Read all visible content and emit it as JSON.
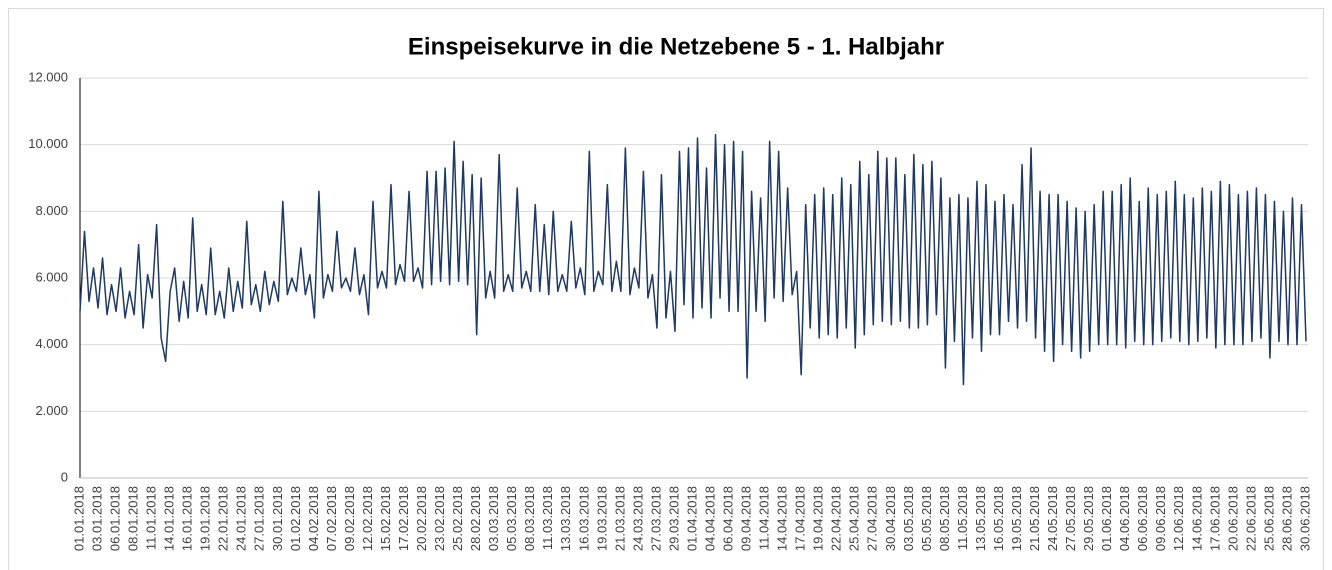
{
  "chart_data": {
    "type": "line",
    "title": "Einspeisekurve in die Netzebene 5 - 1. Halbjahr",
    "color": "#1f3864",
    "grid": true,
    "ylim": [
      0,
      12000
    ],
    "yticks": [
      0,
      {
        "value": 2000,
        "label": "2.000"
      },
      {
        "value": 4000,
        "label": "4.000"
      },
      {
        "value": 6000,
        "label": "6.000"
      },
      {
        "value": 8000,
        "label": "8.000"
      },
      {
        "value": 10000,
        "label": "10.000"
      },
      {
        "value": 12000,
        "label": "12.000"
      }
    ],
    "categories": [
      "01.01.2018",
      null,
      null,
      null,
      "03.01.2018",
      null,
      null,
      null,
      "06.01.2018",
      null,
      null,
      null,
      "08.01.2018",
      null,
      null,
      null,
      "11.01.2018",
      null,
      null,
      null,
      "14.01.2018",
      null,
      null,
      null,
      "16.01.2018",
      null,
      null,
      null,
      "19.01.2018",
      null,
      null,
      null,
      "22.01.2018",
      null,
      null,
      null,
      "24.01.2018",
      null,
      null,
      null,
      "27.01.2018",
      null,
      null,
      null,
      "30.01.2018",
      null,
      null,
      null,
      "01.02.2018",
      null,
      null,
      null,
      "04.02.2018",
      null,
      null,
      null,
      "07.02.2018",
      null,
      null,
      null,
      "09.02.2018",
      null,
      null,
      null,
      "12.02.2018",
      null,
      null,
      null,
      "15.02.2018",
      null,
      null,
      null,
      "17.02.2018",
      null,
      null,
      null,
      "20.02.2018",
      null,
      null,
      null,
      "23.02.2018",
      null,
      null,
      null,
      "25.02.2018",
      null,
      null,
      null,
      "28.02.2018",
      null,
      null,
      null,
      "03.03.2018",
      null,
      null,
      null,
      "05.03.2018",
      null,
      null,
      null,
      "08.03.2018",
      null,
      null,
      null,
      "11.03.2018",
      null,
      null,
      null,
      "13.03.2018",
      null,
      null,
      null,
      "16.03.2018",
      null,
      null,
      null,
      "19.03.2018",
      null,
      null,
      null,
      "21.03.2018",
      null,
      null,
      null,
      "24.03.2018",
      null,
      null,
      null,
      "27.03.2018",
      null,
      null,
      null,
      "29.03.2018",
      null,
      null,
      null,
      "01.04.2018",
      null,
      null,
      null,
      "04.04.2018",
      null,
      null,
      null,
      "06.04.2018",
      null,
      null,
      null,
      "09.04.2018",
      null,
      null,
      null,
      "11.04.2018",
      null,
      null,
      null,
      "14.04.2018",
      null,
      null,
      null,
      "17.04.2018",
      null,
      null,
      null,
      "19.04.2018",
      null,
      null,
      null,
      "22.04.2018",
      null,
      null,
      null,
      "25.04.2018",
      null,
      null,
      null,
      "27.04.2018",
      null,
      null,
      null,
      "30.04.2018",
      null,
      null,
      null,
      "03.05.2018",
      null,
      null,
      null,
      "05.05.2018",
      null,
      null,
      null,
      "08.05.2018",
      null,
      null,
      null,
      "11.05.2018",
      null,
      null,
      null,
      "13.05.2018",
      null,
      null,
      null,
      "16.05.2018",
      null,
      null,
      null,
      "19.05.2018",
      null,
      null,
      null,
      "21.05.2018",
      null,
      null,
      null,
      "24.05.2018",
      null,
      null,
      null,
      "27.05.2018",
      null,
      null,
      null,
      "29.05.2018",
      null,
      null,
      null,
      "01.06.2018",
      null,
      null,
      null,
      "04.06.2018",
      null,
      null,
      null,
      "06.06.2018",
      null,
      null,
      null,
      "09.06.2018",
      null,
      null,
      null,
      "12.06.2018",
      null,
      null,
      null,
      "14.06.2018",
      null,
      null,
      null,
      "17.06.2018",
      null,
      null,
      null,
      "20.06.2018",
      null,
      null,
      null,
      "22.06.2018",
      null,
      null,
      null,
      "25.06.2018",
      null,
      null,
      null,
      "28.06.2018",
      null,
      null,
      null,
      "30.06.2018"
    ],
    "values": [
      5000,
      7400,
      5300,
      6300,
      5100,
      6600,
      4900,
      5800,
      5000,
      6300,
      4800,
      5600,
      4900,
      7000,
      4500,
      6100,
      5400,
      7600,
      4200,
      3500,
      5600,
      6300,
      4700,
      5900,
      4800,
      7800,
      5000,
      5800,
      4900,
      6900,
      4900,
      5600,
      4800,
      6300,
      5000,
      5900,
      5100,
      7700,
      5200,
      5800,
      5000,
      6200,
      5200,
      5900,
      5300,
      8300,
      5500,
      6000,
      5600,
      6900,
      5500,
      6100,
      4800,
      8600,
      5400,
      6100,
      5600,
      7400,
      5700,
      6000,
      5600,
      6900,
      5500,
      6100,
      4900,
      8300,
      5700,
      6200,
      5700,
      8800,
      5800,
      6400,
      5900,
      8600,
      5900,
      6300,
      5700,
      9200,
      5800,
      9200,
      5900,
      9300,
      5800,
      10100,
      5900,
      9500,
      5800,
      9100,
      4300,
      9000,
      5400,
      6200,
      5400,
      9700,
      5600,
      6100,
      5600,
      8700,
      5700,
      6200,
      5600,
      8200,
      5600,
      7600,
      5500,
      8000,
      5600,
      6100,
      5600,
      7700,
      5700,
      6300,
      5500,
      9800,
      5600,
      6200,
      5800,
      8800,
      5600,
      6500,
      5600,
      9900,
      5500,
      6300,
      5700,
      9200,
      5400,
      6100,
      4500,
      9100,
      4800,
      6200,
      4400,
      9800,
      5200,
      9900,
      4800,
      10200,
      5100,
      9300,
      4800,
      10300,
      5400,
      10000,
      5000,
      10100,
      5000,
      9800,
      3000,
      8600,
      5000,
      8400,
      4700,
      10100,
      5400,
      9800,
      5300,
      8700,
      5500,
      6200,
      3100,
      8200,
      4500,
      8500,
      4200,
      8700,
      4300,
      8500,
      4200,
      9000,
      4500,
      8800,
      3900,
      9500,
      4300,
      9100,
      4600,
      9800,
      4700,
      9600,
      4600,
      9600,
      4700,
      9100,
      4500,
      9700,
      4500,
      9400,
      4600,
      9500,
      4900,
      9000,
      3300,
      8400,
      4100,
      8500,
      2800,
      8400,
      4200,
      8900,
      3800,
      8800,
      4300,
      8300,
      4300,
      8500,
      4700,
      8200,
      4500,
      9400,
      4700,
      9900,
      4200,
      8600,
      3800,
      8500,
      3500,
      8500,
      4000,
      8300,
      3800,
      8100,
      3600,
      8000,
      3800,
      8200,
      4000,
      8600,
      4000,
      8600,
      4000,
      8800,
      3900,
      9000,
      4100,
      8300,
      4000,
      8700,
      4000,
      8500,
      4100,
      8600,
      4200,
      8900,
      4100,
      8500,
      4000,
      8400,
      4100,
      8700,
      4200,
      8600,
      3900,
      8900,
      4000,
      8800,
      4000,
      8500,
      4000,
      8600,
      4100,
      8700,
      4200,
      8500,
      3600,
      8300,
      4100,
      8000,
      4000,
      8400,
      4000,
      8200,
      4100
    ]
  }
}
